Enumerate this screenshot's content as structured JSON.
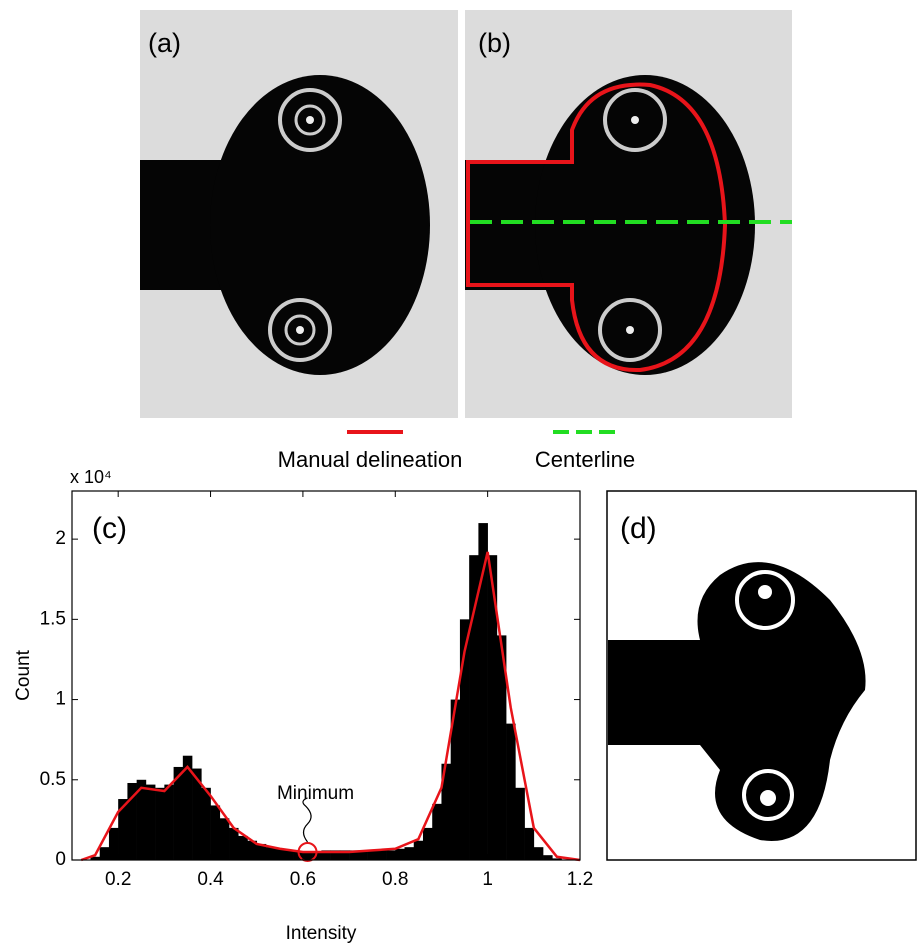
{
  "panels": {
    "a": "(a)",
    "b": "(b)",
    "c": "(c)",
    "d": "(d)"
  },
  "legend": [
    {
      "name": "Manual delineation",
      "color": "#e8141a",
      "style": "solid"
    },
    {
      "name": "Centerline",
      "color": "#22dd22",
      "style": "dashed"
    }
  ],
  "chart_data": {
    "type": "histogram",
    "x_label": "Intensity",
    "y_label": "Count",
    "y_multiplier": "x 10⁴",
    "color": "#000000",
    "bins": [
      0.14,
      0.16,
      0.18,
      0.2,
      0.22,
      0.24,
      0.26,
      0.28,
      0.3,
      0.32,
      0.34,
      0.36,
      0.38,
      0.4,
      0.42,
      0.44,
      0.46,
      0.48,
      0.5,
      0.52,
      0.54,
      0.56,
      0.58,
      0.6,
      0.62,
      0.64,
      0.66,
      0.68,
      0.7,
      0.72,
      0.74,
      0.76,
      0.78,
      0.8,
      0.82,
      0.84,
      0.86,
      0.88,
      0.9,
      0.92,
      0.94,
      0.96,
      0.98,
      1.0,
      1.02,
      1.04,
      1.06,
      1.08,
      1.1,
      1.12,
      1.14,
      1.16
    ],
    "values": [
      0.02,
      0.08,
      0.2,
      0.38,
      0.48,
      0.5,
      0.47,
      0.45,
      0.47,
      0.58,
      0.65,
      0.57,
      0.45,
      0.34,
      0.26,
      0.2,
      0.15,
      0.12,
      0.1,
      0.08,
      0.07,
      0.06,
      0.05,
      0.05,
      0.05,
      0.06,
      0.06,
      0.06,
      0.06,
      0.06,
      0.06,
      0.06,
      0.06,
      0.07,
      0.08,
      0.12,
      0.2,
      0.35,
      0.6,
      1.0,
      1.5,
      1.9,
      2.1,
      1.9,
      1.4,
      0.85,
      0.45,
      0.2,
      0.08,
      0.03,
      0.01
    ],
    "fit": {
      "color": "#e8141a",
      "x": [
        0.12,
        0.15,
        0.2,
        0.25,
        0.3,
        0.35,
        0.4,
        0.45,
        0.5,
        0.55,
        0.6,
        0.65,
        0.7,
        0.75,
        0.8,
        0.85,
        0.9,
        0.95,
        1.0,
        1.05,
        1.1,
        1.15,
        1.2
      ],
      "y": [
        0,
        0.03,
        0.3,
        0.45,
        0.43,
        0.58,
        0.4,
        0.2,
        0.1,
        0.07,
        0.05,
        0.05,
        0.05,
        0.06,
        0.07,
        0.13,
        0.45,
        1.3,
        1.92,
        0.95,
        0.2,
        0.02,
        0
      ]
    },
    "annotation": {
      "text": "Minimum",
      "x": 0.61,
      "y": 0.05
    },
    "xlim": [
      0.1,
      1.2
    ],
    "ylim": [
      0,
      2.3
    ],
    "xticks": [
      0.2,
      0.4,
      0.6,
      0.8,
      1,
      1.2
    ],
    "yticks": [
      0,
      0.5,
      1,
      1.5,
      2
    ]
  }
}
